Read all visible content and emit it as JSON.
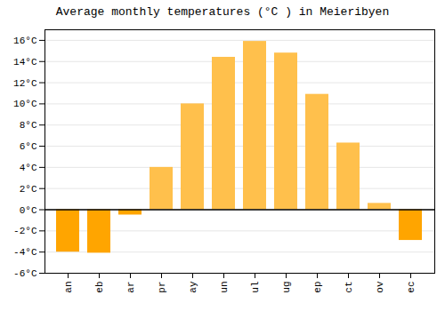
{
  "chart_data": {
    "type": "bar",
    "title": "Average monthly temperatures (°C ) in Meieribyen",
    "categories": [
      "an",
      "eb",
      "ar",
      "pr",
      "ay",
      "un",
      "ul",
      "ug",
      "ep",
      "ct",
      "ov",
      "ec"
    ],
    "values": [
      -4.0,
      -4.1,
      -0.5,
      4.0,
      10.0,
      14.4,
      15.9,
      14.8,
      10.9,
      6.3,
      0.6,
      -2.9
    ],
    "colors": [
      "#FFA500",
      "#FFA500",
      "#FFA500",
      "#FFC04C",
      "#FFC04C",
      "#FFC04C",
      "#FFC04C",
      "#FFC04C",
      "#FFC04C",
      "#FFC04C",
      "#FFC04C",
      "#FFA500"
    ],
    "ylim": [
      -6,
      17
    ],
    "yticks": [
      {
        "value": -6,
        "label": "-6°C"
      },
      {
        "value": -4,
        "label": "-4°C"
      },
      {
        "value": -2,
        "label": "-2°C"
      },
      {
        "value": 0,
        "label": "0°C"
      },
      {
        "value": 2,
        "label": "2°C"
      },
      {
        "value": 4,
        "label": "4°C"
      },
      {
        "value": 6,
        "label": "6°C"
      },
      {
        "value": 8,
        "label": "8°C"
      },
      {
        "value": 10,
        "label": "10°C"
      },
      {
        "value": 12,
        "label": "12°C"
      },
      {
        "value": 14,
        "label": "14°C"
      },
      {
        "value": 16,
        "label": "16°C"
      }
    ],
    "grid": true
  }
}
